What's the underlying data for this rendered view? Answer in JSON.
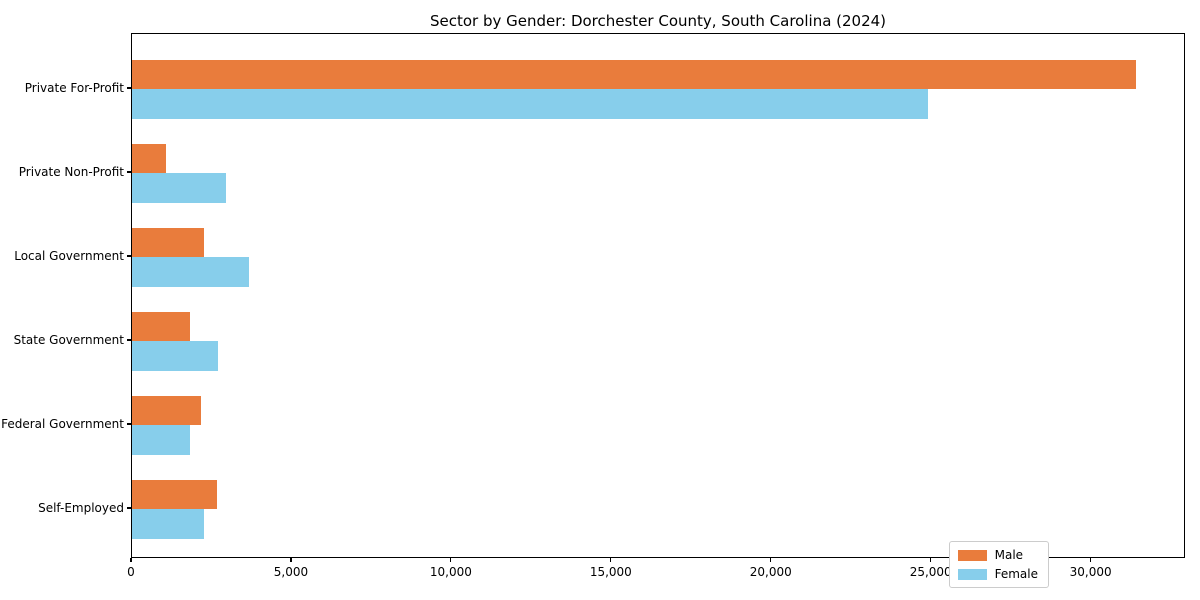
{
  "chart_data": {
    "type": "bar",
    "orientation": "horizontal",
    "title": "Sector by Gender: Dorchester County, South Carolina (2024)",
    "categories": [
      "Private For-Profit",
      "Private Non-Profit",
      "Local Government",
      "State Government",
      "Federal Government",
      "Self-Employed"
    ],
    "series": [
      {
        "name": "Male",
        "color": "#E97C3C",
        "values": [
          31400,
          1050,
          2250,
          1800,
          2150,
          2650
        ]
      },
      {
        "name": "Female",
        "color": "#87CEEB",
        "values": [
          24900,
          2950,
          3650,
          2700,
          1800,
          2250
        ]
      }
    ],
    "xlim": [
      0,
      32950
    ],
    "xticks": [
      0,
      5000,
      10000,
      15000,
      20000,
      25000,
      30000
    ],
    "xtick_labels": [
      "0",
      "5,000",
      "10,000",
      "15,000",
      "20,000",
      "25,000",
      "30,000"
    ],
    "xlabel": "",
    "ylabel": "",
    "grid": false,
    "legend": {
      "position": "lower right",
      "entries": [
        "Male",
        "Female"
      ]
    }
  }
}
